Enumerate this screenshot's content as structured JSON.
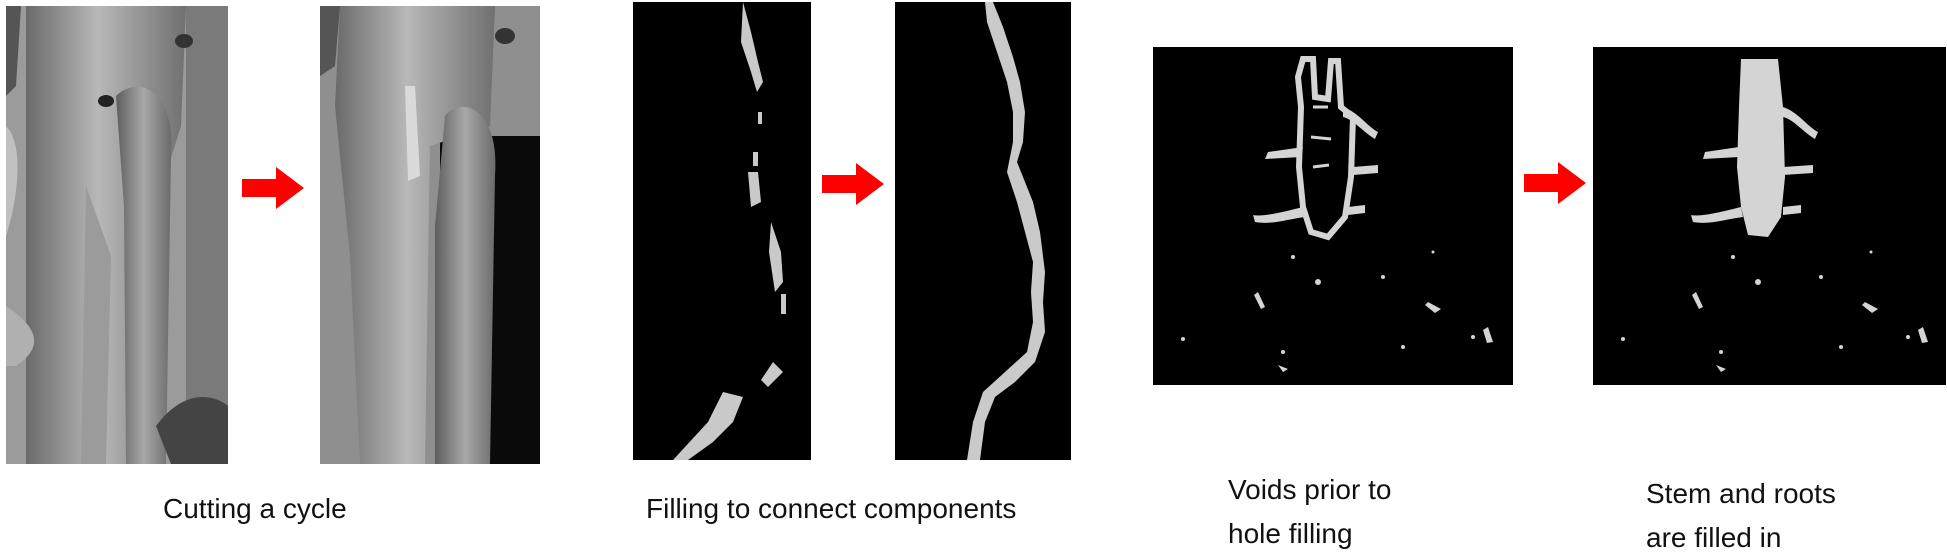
{
  "captions": {
    "cutting": "Cutting a cycle",
    "filling": "Filling to connect components",
    "voids_line1": "Voids prior to",
    "voids_line2": "hole filling",
    "stem_line1": "Stem and roots",
    "stem_line2": "are filled in"
  },
  "colors": {
    "arrow": "#ff0000",
    "background": "#ffffff",
    "panel_dark": "#000000",
    "mesh_gray": "#8c8c8c",
    "mask_light": "#d4d4d4"
  },
  "icons": {
    "arrow": "right-arrow-icon"
  }
}
